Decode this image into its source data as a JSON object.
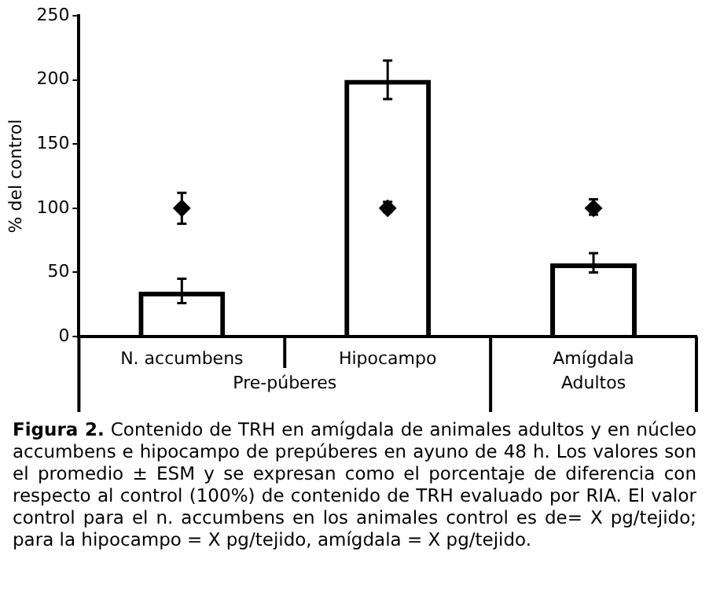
{
  "chart_data": {
    "type": "bar",
    "title": "Figura 2.",
    "ylabel": "% del control",
    "categories": [
      "N. accumbens",
      "Hipocampo",
      "Amígdala"
    ],
    "series": [
      {
        "color": "#000000",
        "values": [
          35,
          200,
          57
        ],
        "errors": [
          [
            26,
            45
          ],
          [
            185,
            215
          ],
          [
            50,
            65
          ]
        ]
      },
      {
        "type": "scatter",
        "x": [
          "N. accumbens",
          "Hipocampo",
          "Amígdala"
        ],
        "color": "#000000",
        "marker": "diamond",
        "values": [
          100,
          100,
          100
        ],
        "errors": [
          [
            88,
            112
          ],
          [
            97,
            105
          ],
          [
            95,
            107
          ]
        ]
      }
    ],
    "ylim": [
      0,
      250
    ],
    "yticks": [
      0,
      50,
      100,
      150,
      200,
      250
    ],
    "grid": false,
    "legend": false,
    "annotations": [
      "Pre-púberes",
      "Adultos",
      "Contenido de TRH en amígdala de animales adultos y en núcleo accumbens e hipocampo de prepúberes en ayuno de 48 h. Los valores son el promedio ± ESM y se expresan como el porcentaje de diferencia con respecto al control (100%) de contenido de TRH evaluado por RIA. El valor control para el n. accumbens en los animales control es de= X pg/tejido; para la hipocampo = X pg/tejido, amígdala = X pg/tejido."
    ]
  }
}
